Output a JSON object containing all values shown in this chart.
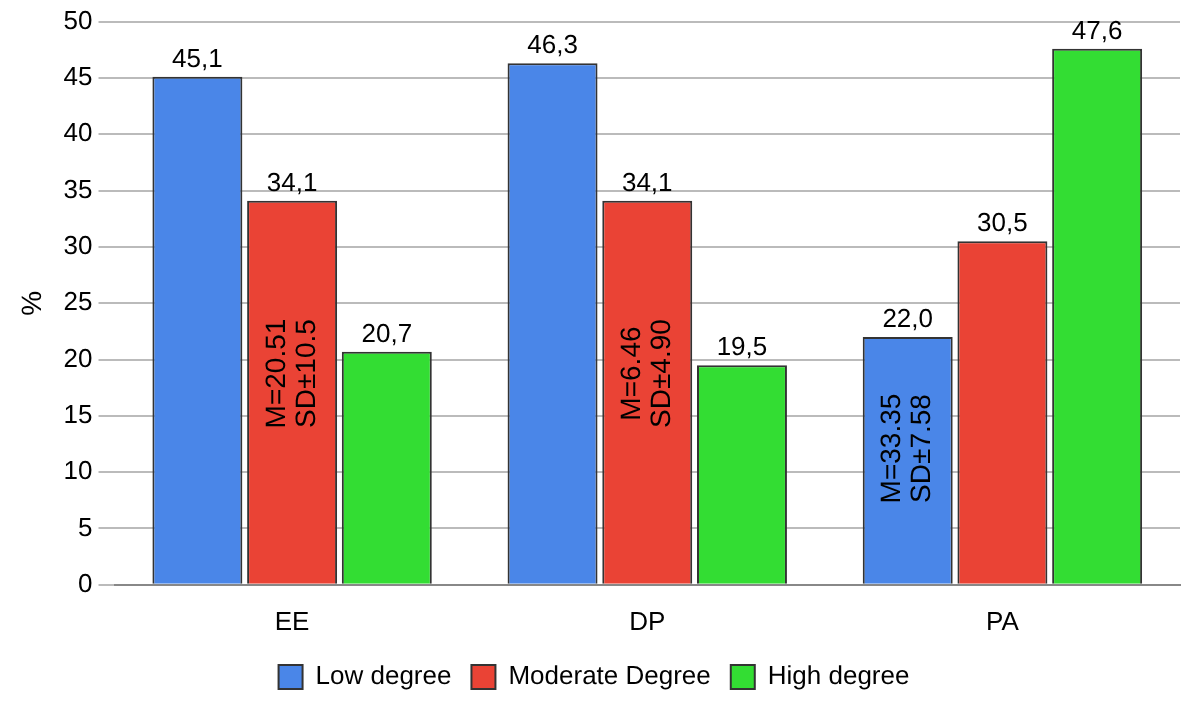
{
  "chart_data": {
    "type": "bar",
    "ylabel": "%",
    "categories": [
      "EE",
      "DP",
      "PA"
    ],
    "series": [
      {
        "name": "Low degree",
        "color": "#4a86e8",
        "values": [
          45.1,
          46.3,
          22.0
        ],
        "value_labels": [
          "45,1",
          "46,3",
          "22,0"
        ]
      },
      {
        "name": "Moderate Degree",
        "color": "#ea4335",
        "values": [
          34.1,
          34.1,
          30.5
        ],
        "value_labels": [
          "34,1",
          "34,1",
          "30,5"
        ]
      },
      {
        "name": "High degree",
        "color": "#33dd33",
        "values": [
          20.7,
          19.5,
          47.6
        ],
        "value_labels": [
          "20,7",
          "19,5",
          "47,6"
        ]
      }
    ],
    "ylim": [
      0,
      50
    ],
    "yticks": [
      0,
      5,
      10,
      15,
      20,
      25,
      30,
      35,
      40,
      45,
      50
    ],
    "grid": "y",
    "legend": "bottom",
    "annotations": [
      "M=20.51 SD±10.5",
      "M=6.46 SD±4.90",
      "M=33.35 SD±7.58"
    ]
  }
}
